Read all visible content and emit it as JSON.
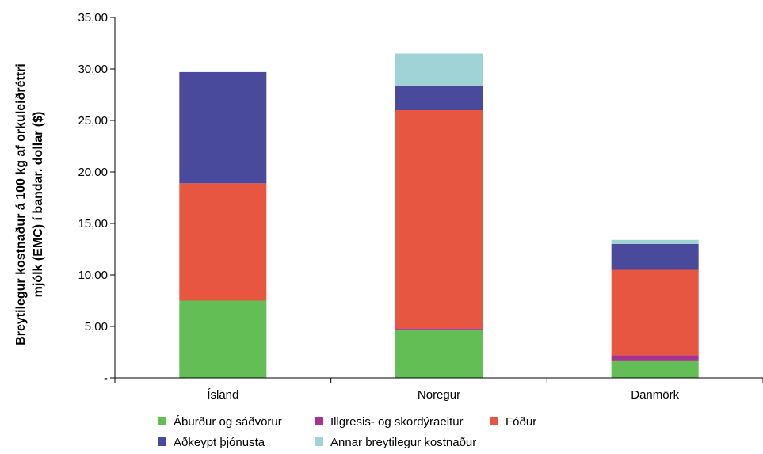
{
  "chart_data": {
    "type": "bar",
    "stacked": true,
    "categories": [
      "Ísland",
      "Noregur",
      "Danmörk"
    ],
    "series": [
      {
        "name": "Áburður og sáðvörur",
        "color": "#62be55",
        "values": [
          7.5,
          4.7,
          1.7
        ]
      },
      {
        "name": "Illgresis- og skordýraeitur",
        "color": "#a8338f",
        "values": [
          0.0,
          0.1,
          0.5
        ]
      },
      {
        "name": "Fóður",
        "color": "#e65641",
        "values": [
          11.4,
          21.2,
          8.3
        ]
      },
      {
        "name": "Aðkeypt þjónusta",
        "color": "#4a4a9c",
        "values": [
          10.8,
          2.4,
          2.5
        ]
      },
      {
        "name": "Annar breytilegur kostnaður",
        "color": "#9fd3d6",
        "values": [
          0.0,
          3.1,
          0.4
        ]
      }
    ],
    "ylabel": [
      "Breytilegur kostnaður á 100 kg af orkuleiðréttri",
      "mjólk (EMC) í bandar. dollar ($)"
    ],
    "ylim": [
      0,
      35
    ],
    "yticks": [
      {
        "value": 0,
        "label": "-"
      },
      {
        "value": 5,
        "label": "5,00"
      },
      {
        "value": 10,
        "label": "10,00"
      },
      {
        "value": 15,
        "label": "15,00"
      },
      {
        "value": 20,
        "label": "20,00"
      },
      {
        "value": 25,
        "label": "25,00"
      },
      {
        "value": 30,
        "label": "30,00"
      },
      {
        "value": 35,
        "label": "35,00"
      }
    ],
    "grid": false,
    "legend_position": "bottom"
  }
}
